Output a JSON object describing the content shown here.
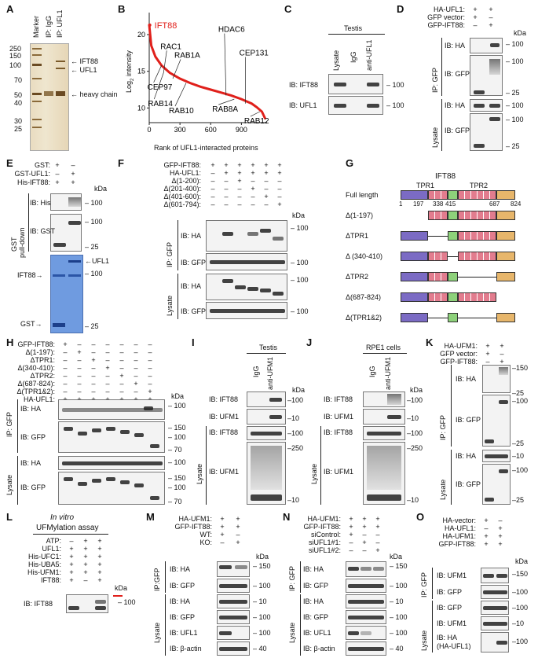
{
  "panels": {
    "A": "A",
    "B": "B",
    "C": "C",
    "D": "D",
    "E": "E",
    "F": "F",
    "G": "G",
    "H": "H",
    "I": "I",
    "J": "J",
    "K": "K",
    "L": "L",
    "M": "M",
    "N": "N",
    "O": "O"
  },
  "kda": "kDa",
  "A": {
    "lanes": [
      "Marker",
      "IP: IgG",
      "IP: UFL1"
    ],
    "mw": [
      "250",
      "150",
      "100",
      "70",
      "50",
      "40",
      "30",
      "25"
    ],
    "labels": [
      "IFT88",
      "UFL1",
      "heavy chain"
    ]
  },
  "B": {
    "chart_data": {
      "type": "scatter",
      "xlabel": "Rank of UFL1-interacted proteins",
      "ylabel": "Log2 intensity",
      "xticks": [
        0,
        300,
        600,
        900
      ],
      "yticks": [
        10,
        15,
        20
      ],
      "xlim": [
        0,
        1150
      ],
      "ylim": [
        8,
        23
      ],
      "highlight": {
        "name": "IFT88",
        "x": 5,
        "y": 21.3
      },
      "annotations": [
        {
          "name": "RAC1",
          "x": 140,
          "y": 17.4
        },
        {
          "name": "RAB1A",
          "x": 230,
          "y": 16.2
        },
        {
          "name": "CEP97",
          "x": 120,
          "y": 13.8
        },
        {
          "name": "RAB14",
          "x": 140,
          "y": 12.6
        },
        {
          "name": "HDAC6",
          "x": 750,
          "y": 19.5
        },
        {
          "name": "CEP131",
          "x": 940,
          "y": 16.3
        },
        {
          "name": "RAB10",
          "x": 360,
          "y": 11.2
        },
        {
          "name": "RAB8A",
          "x": 830,
          "y": 11.2
        },
        {
          "name": "RAB12",
          "x": 1080,
          "y": 9.6
        }
      ],
      "curve_x": [
        0,
        20,
        60,
        120,
        200,
        300,
        400,
        500,
        600,
        700,
        800,
        900,
        1000,
        1050,
        1100,
        1130
      ],
      "curve_y": [
        21.3,
        18.5,
        17,
        15.8,
        14.8,
        14,
        13.4,
        12.9,
        12.5,
        12.1,
        11.7,
        11.2,
        10.6,
        10.1,
        9.5,
        8.6
      ]
    },
    "ylabel_main": "Log",
    "ylabel_sub": "2",
    "ylabel_tail": " intensity"
  },
  "C": {
    "title": "Testis",
    "lanes": [
      "Lysate",
      "IgG",
      "anti-UFL1"
    ],
    "blots": [
      "IB: IFT88",
      "IB: UFL1"
    ],
    "mw": [
      "100",
      "100"
    ]
  },
  "D": {
    "rows": [
      [
        "HA-UFL1:",
        "+",
        "+"
      ],
      [
        "GFP vector:",
        "+",
        "–"
      ],
      [
        "GFP-IFT88:",
        "–",
        "+"
      ]
    ],
    "sections": [
      "IP: GFP",
      "Lysate"
    ],
    "blots": [
      "IB: HA",
      "IB: GFP",
      "IB: HA",
      "IB: GFP"
    ],
    "mw": [
      "100",
      "100",
      "25",
      "100",
      "100",
      "25"
    ]
  },
  "E": {
    "rows": [
      [
        "GST:",
        "+",
        "–"
      ],
      [
        "GST-UFL1:",
        "–",
        "+"
      ],
      [
        "His-IFT88:",
        "+",
        "+"
      ]
    ],
    "section": "GST pull-down",
    "section_a": "GST",
    "section_b": "pull-down",
    "blots": [
      "IB: His",
      "IB: GST"
    ],
    "mw": [
      "100",
      "100",
      "25",
      "100",
      "25"
    ],
    "gel_labels": [
      "UFL1",
      "IFT88",
      "GST"
    ]
  },
  "F": {
    "rows": [
      [
        "GFP-IFT88:",
        "+",
        "+",
        "+",
        "+",
        "+",
        "+"
      ],
      [
        "HA-UFL1:",
        "–",
        "+",
        "+",
        "+",
        "+",
        "+"
      ],
      [
        "Δ(1-200):",
        "–",
        "–",
        "+",
        "–",
        "–",
        "–"
      ],
      [
        "Δ(201-400):",
        "–",
        "–",
        "–",
        "+",
        "–",
        "–"
      ],
      [
        "Δ(401-600):",
        "–",
        "–",
        "–",
        "–",
        "+",
        "–"
      ],
      [
        "Δ(601-794):",
        "–",
        "–",
        "–",
        "–",
        "–",
        "+"
      ]
    ],
    "sections": [
      "IP: GFP",
      "Lysate"
    ],
    "blots": [
      "IB: HA",
      "IB: GFP",
      "IB: HA",
      "IB: GFP"
    ],
    "mw": [
      "100",
      "100",
      "100",
      "100"
    ]
  },
  "G": {
    "title": "IFT88",
    "domains": [
      "TPR1",
      "TPR2"
    ],
    "positions": [
      "1",
      "197",
      "338",
      "415",
      "687",
      "824"
    ],
    "constructs": [
      "Full length",
      "Δ(1-197)",
      "ΔTPR1",
      "Δ (340-410)",
      "ΔTPR2",
      "Δ(687-824)",
      "Δ(TPR1&2)"
    ],
    "colors": {
      "n": "#7b6bc4",
      "tpr": "#e27c8e",
      "mid": "#8dd17a",
      "c": "#e7b66b"
    }
  },
  "H": {
    "rows": [
      [
        "GFP-IFT88:",
        "+",
        "–",
        "–",
        "–",
        "–",
        "–",
        "–"
      ],
      [
        "Δ(1-197):",
        "–",
        "+",
        "–",
        "–",
        "–",
        "–",
        "–"
      ],
      [
        "ΔTPR1:",
        "–",
        "–",
        "+",
        "–",
        "–",
        "–",
        "–"
      ],
      [
        "Δ(340-410):",
        "–",
        "–",
        "–",
        "+",
        "–",
        "–",
        "–"
      ],
      [
        "ΔTPR2:",
        "–",
        "–",
        "–",
        "–",
        "+",
        "–",
        "–"
      ],
      [
        "Δ(687-824):",
        "–",
        "–",
        "–",
        "–",
        "–",
        "+",
        "–"
      ],
      [
        "Δ(TPR1&2):",
        "–",
        "–",
        "–",
        "–",
        "–",
        "–",
        "+"
      ],
      [
        "HA-UFL1:",
        "+",
        "+",
        "+",
        "+",
        "+",
        "+",
        "+"
      ]
    ],
    "sections": [
      "IP: GFP",
      "Lysate"
    ],
    "blots": [
      "IB: HA",
      "IB: GFP",
      "IB: HA",
      "IB: GFP"
    ],
    "mw": [
      "100",
      "150",
      "100",
      "70",
      "100",
      "150",
      "100",
      "70"
    ]
  },
  "I": {
    "title": "Testis",
    "lanes": [
      "IgG",
      "anti-UFM1"
    ],
    "section": "Lysate",
    "blots": [
      "IB: IFT88",
      "IB: UFM1",
      "IB: IFT88",
      "IB: UFM1"
    ],
    "mw": [
      "100",
      "10",
      "100",
      "250",
      "10"
    ]
  },
  "J": {
    "title": "RPE1 cells",
    "lanes": [
      "IgG",
      "anti-UFM1"
    ],
    "section": "Lysate",
    "blots": [
      "IB: IFT88",
      "IB: UFM1",
      "IB: IFT88",
      "IB: UFM1"
    ],
    "mw": [
      "100",
      "10",
      "100",
      "250",
      "10"
    ]
  },
  "K": {
    "rows": [
      [
        "HA-UFM1:",
        "+",
        "+"
      ],
      [
        "GFP vector:",
        "+",
        "–"
      ],
      [
        "GFP-IFT88:",
        "–",
        "+"
      ]
    ],
    "sections": [
      "IP: GFP",
      "Lysate"
    ],
    "blots": [
      "IB: HA",
      "IB: GFP",
      "IB: HA",
      "IB: GFP"
    ],
    "mw": [
      "150",
      "25",
      "100",
      "25",
      "10",
      "100",
      "25"
    ]
  },
  "L": {
    "title_italic": "In vitro",
    "title": "UFMylation assay",
    "rows": [
      [
        "ATP:",
        "–",
        "+",
        "+"
      ],
      [
        "UFL1:",
        "+",
        "+",
        "+"
      ],
      [
        "His-UFC1:",
        "+",
        "+",
        "+"
      ],
      [
        "His-UBA5:",
        "+",
        "+",
        "+"
      ],
      [
        "His-UFM1:",
        "+",
        "+",
        "+"
      ],
      [
        "IFT88:",
        "+",
        "–",
        "+"
      ]
    ],
    "blot": "IB: IFT88",
    "mw": [
      "100"
    ]
  },
  "M": {
    "rows": [
      [
        "HA-UFM1:",
        "+",
        "+"
      ],
      [
        "GFP-IFT88:",
        "+",
        "+"
      ],
      [
        "WT:",
        "+",
        "–"
      ],
      [
        "KO:",
        "–",
        "+"
      ]
    ],
    "sections": [
      "IP:GFP",
      "Lysate"
    ],
    "blots": [
      "IB: HA",
      "IB: GFP",
      "IB: HA",
      "IB: GFP",
      "IB: UFL1",
      "IB: β-actin"
    ],
    "mw": [
      "150",
      "100",
      "10",
      "100",
      "100",
      "40"
    ]
  },
  "N": {
    "rows": [
      [
        "HA-UFM1:",
        "+",
        "+",
        "+"
      ],
      [
        "GFP-IFT88:",
        "+",
        "+",
        "+"
      ],
      [
        "siControl:",
        "+",
        "–",
        "–"
      ],
      [
        "siUFL1#1:",
        "–",
        "+",
        "–"
      ],
      [
        "siUFL1#2:",
        "–",
        "–",
        "+"
      ]
    ],
    "sections": [
      "IP: GFP",
      "Lysate"
    ],
    "blots": [
      "IB: HA",
      "IB: GFP",
      "IB: HA",
      "IB: GFP",
      "IB: UFL1",
      "IB: β-actin"
    ],
    "mw": [
      "150",
      "100",
      "10",
      "100",
      "100",
      "40"
    ]
  },
  "O": {
    "rows": [
      [
        "HA-vector:",
        "+",
        "–"
      ],
      [
        "HA-UFL1:",
        "–",
        "+"
      ],
      [
        "HA-UFM1:",
        "+",
        "+"
      ],
      [
        "GFP-IFT88:",
        "+",
        "+"
      ]
    ],
    "sections": [
      "IP: GFP",
      "Lysate"
    ],
    "blots": [
      "IB: UFM1",
      "IB: GFP",
      "IB: GFP",
      "IB: UFM1",
      "IB: HA"
    ],
    "blot_sub": "(HA-UFL1)",
    "mw": [
      "150",
      "100",
      "100",
      "10",
      "100"
    ]
  }
}
